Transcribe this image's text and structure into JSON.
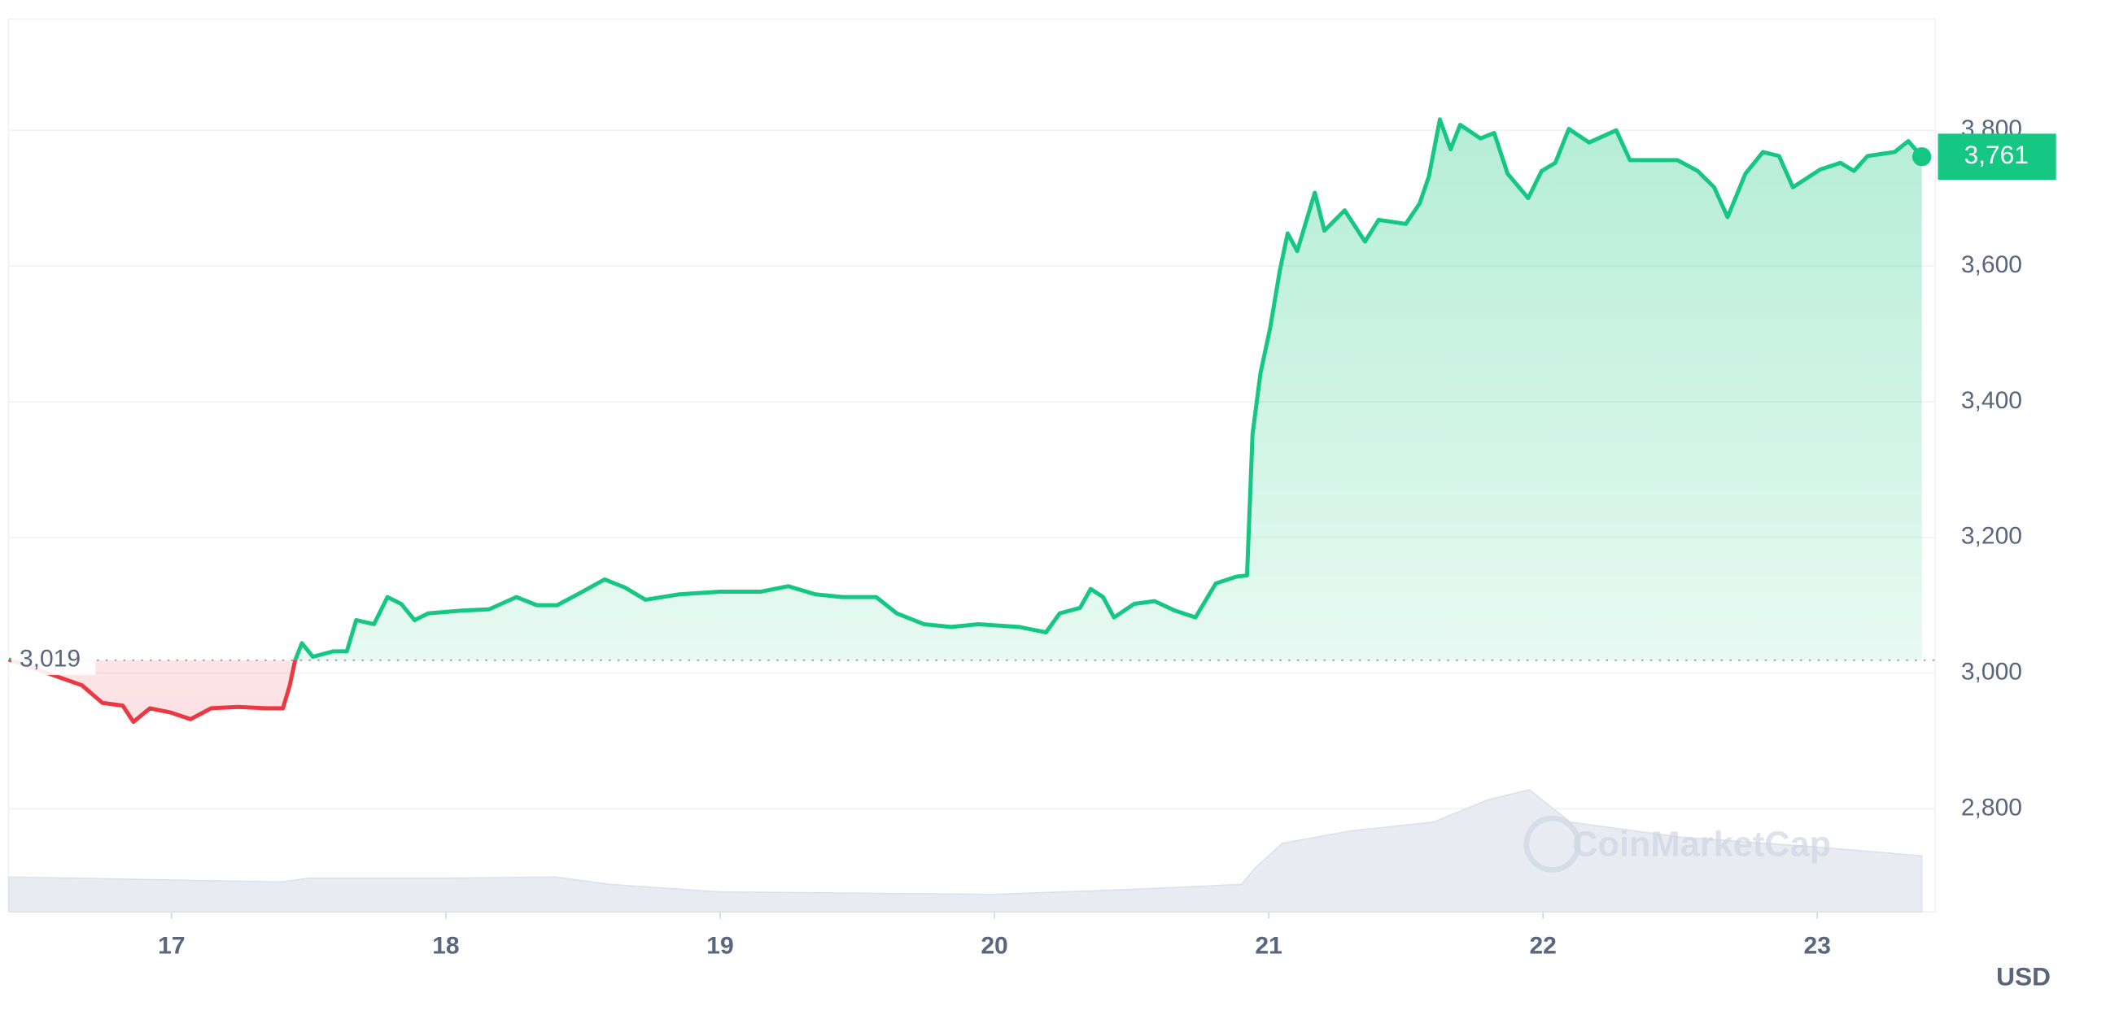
{
  "chart_data": {
    "type": "line",
    "x": [
      16.406,
      16.673,
      16.748,
      16.822,
      16.861,
      16.921,
      16.995,
      17.069,
      17.144,
      17.243,
      17.342,
      17.406,
      17.431,
      17.45,
      17.475,
      17.515,
      17.589,
      17.639,
      17.673,
      17.738,
      17.787,
      17.837,
      17.886,
      17.936,
      18.059,
      18.158,
      18.257,
      18.332,
      18.406,
      18.48,
      18.579,
      18.653,
      18.728,
      18.851,
      19.0,
      19.149,
      19.248,
      19.347,
      19.446,
      19.569,
      19.644,
      19.743,
      19.842,
      19.941,
      20.089,
      20.188,
      20.238,
      20.312,
      20.351,
      20.396,
      20.436,
      20.51,
      20.584,
      20.658,
      20.733,
      20.807,
      20.881,
      20.921,
      20.941,
      20.97,
      21.005,
      21.04,
      21.069,
      21.104,
      21.168,
      21.203,
      21.277,
      21.351,
      21.401,
      21.5,
      21.55,
      21.584,
      21.624,
      21.663,
      21.698,
      21.772,
      21.822,
      21.871,
      21.946,
      21.995,
      22.045,
      22.094,
      22.168,
      22.267,
      22.317,
      22.391,
      22.49,
      22.564,
      22.624,
      22.673,
      22.738,
      22.802,
      22.861,
      22.911,
      23.01,
      23.084,
      23.134,
      23.183,
      23.282,
      23.332,
      23.381
    ],
    "values": [
      3020,
      2982,
      2956,
      2952,
      2928,
      2948,
      2942,
      2932,
      2948,
      2950,
      2948,
      2948,
      2982,
      3018,
      3044,
      3024,
      3032,
      3032,
      3078,
      3072,
      3112,
      3102,
      3078,
      3088,
      3092,
      3094,
      3112,
      3100,
      3100,
      3116,
      3138,
      3126,
      3108,
      3116,
      3120,
      3120,
      3128,
      3116,
      3112,
      3112,
      3088,
      3072,
      3068,
      3072,
      3068,
      3060,
      3088,
      3096,
      3124,
      3112,
      3082,
      3102,
      3106,
      3092,
      3082,
      3132,
      3142,
      3144,
      3352,
      3442,
      3508,
      3592,
      3648,
      3622,
      3708,
      3652,
      3682,
      3636,
      3668,
      3662,
      3692,
      3732,
      3816,
      3772,
      3808,
      3788,
      3796,
      3736,
      3700,
      3740,
      3752,
      3802,
      3782,
      3800,
      3756,
      3756,
      3756,
      3740,
      3716,
      3672,
      3736,
      3768,
      3762,
      3716,
      3742,
      3752,
      3740,
      3762,
      3768,
      3784,
      3761
    ],
    "colors": {
      "up": "#16c784",
      "down": "#ea3943"
    },
    "baseline": {
      "value": 3019,
      "label": "3,019"
    },
    "current": {
      "value": 3761,
      "label": "3,761"
    },
    "xlim": [
      16.406,
      23.43
    ],
    "xticks": [
      17,
      18,
      19,
      20,
      21,
      22,
      23
    ],
    "ylim": [
      2648,
      3964
    ],
    "yticks": [
      {
        "value": 2800,
        "label": "2,800"
      },
      {
        "value": 3000,
        "label": "3,000"
      },
      {
        "value": 3200,
        "label": "3,200"
      },
      {
        "value": 3400,
        "label": "3,400"
      },
      {
        "value": 3600,
        "label": "3,600"
      },
      {
        "value": 3800,
        "label": "3,800"
      }
    ],
    "grid": true,
    "unit": "USD",
    "watermark": "CoinMarketCap",
    "volume": {
      "x": [
        16.406,
        16.9,
        17.4,
        17.5,
        18.0,
        18.4,
        18.6,
        19.0,
        19.5,
        20.0,
        20.5,
        20.9,
        20.95,
        21.05,
        21.3,
        21.6,
        21.8,
        21.95,
        22.1,
        22.5,
        23.0,
        23.381
      ],
      "values": [
        28,
        26,
        24,
        27,
        27,
        28,
        22,
        16,
        15,
        14,
        18,
        22,
        35,
        55,
        65,
        72,
        90,
        98,
        72,
        60,
        52,
        45
      ]
    }
  }
}
